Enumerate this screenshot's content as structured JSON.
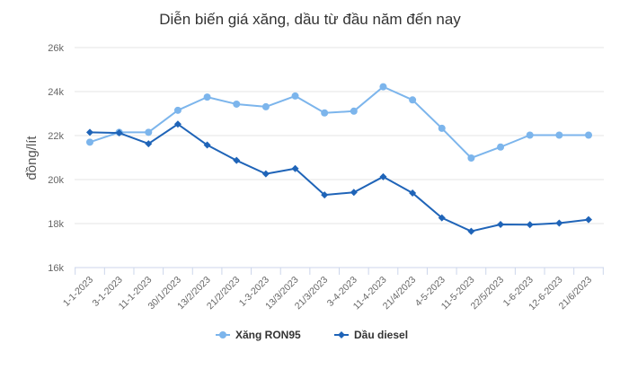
{
  "chart_data": {
    "type": "line",
    "title": "Diễn biến giá xăng, dầu từ đầu năm đến nay",
    "ylabel": "đồng/lít",
    "xlabel": "",
    "ylim": [
      16000,
      26000
    ],
    "yticks": [
      16000,
      18000,
      20000,
      22000,
      24000,
      26000
    ],
    "ytick_labels": [
      "16k",
      "18k",
      "20k",
      "22k",
      "24k",
      "26k"
    ],
    "grid": true,
    "legend": "bottom-center",
    "categories": [
      "1-1-2023",
      "3-1-2023",
      "11-1-2023",
      "30/1/2023",
      "13/2/2023",
      "21/2/2023",
      "1-3-2023",
      "13/3/2023",
      "21/3/2023",
      "3-4-2023",
      "11-4-2023",
      "21/4/2023",
      "4-5-2023",
      "11-5-2023",
      "22/5/2023",
      "1-6-2023",
      "12-6-2023",
      "21/6/2023"
    ],
    "series": [
      {
        "name": "Xăng RON95",
        "color": "#7cb5ec",
        "marker": "circle",
        "values": [
          21700,
          22150,
          22150,
          23150,
          23750,
          23430,
          23310,
          23800,
          23030,
          23110,
          24220,
          23620,
          22330,
          20980,
          21480,
          22020,
          22020,
          22020
        ]
      },
      {
        "name": "Dầu diesel",
        "color": "#1f64b8",
        "marker": "diamond",
        "values": [
          22150,
          22120,
          21630,
          22520,
          21570,
          20870,
          20260,
          20500,
          19300,
          19420,
          20130,
          19390,
          18260,
          17650,
          17960,
          17950,
          18020,
          18180
        ]
      }
    ]
  }
}
